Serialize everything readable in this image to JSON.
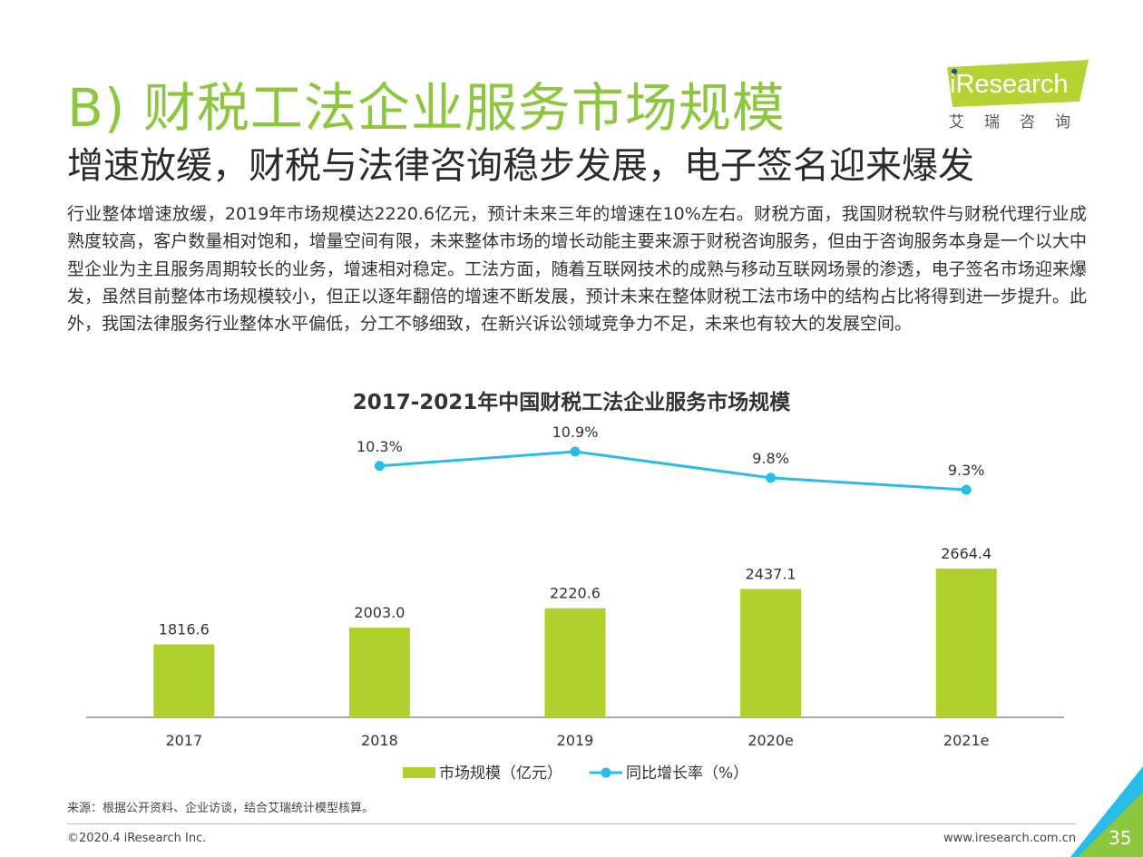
{
  "page": {
    "title": "B) 财税工法企业服务市场规模",
    "subtitle": "增速放缓，财税与法律咨询稳步发展，电子签名迎来爆发",
    "body": "行业整体增速放缓，2019年市场规模达2220.6亿元，预计未来三年的增速在10%左右。财税方面，我国财税软件与财税代理行业成熟度较高，客户数量相对饱和，增量空间有限，未来整体市场的增长动能主要来源于财税咨询服务，但由于咨询服务本身是一个以大中型企业为主且服务周期较长的业务，增速相对稳定。工法方面，随着互联网技术的成熟与移动互联网场景的渗透，电子签名市场迎来爆发，虽然目前整体市场规模较小，但正以逐年翻倍的增速不断发展，预计未来在整体财税工法市场中的结构占比将得到进一步提升。此外，我国法律服务行业整体水平偏低，分工不够细致，在新兴诉讼领域竞争力不足，未来也有较大的发展空间。",
    "source": "来源：根据公开资料、企业访谈，结合艾瑞统计模型核算。",
    "copyright": "©2020.4 iResearch Inc.",
    "website": "www.iresearch.com.cn",
    "page_number": "35"
  },
  "logo": {
    "brand": "iResearch",
    "sub_chars": [
      "艾",
      "瑞",
      "咨",
      "询"
    ]
  },
  "colors": {
    "accent_green": "#8dc63f",
    "bar_green": "#aed12e",
    "line_blue": "#27bde8"
  },
  "chart_data": {
    "type": "bar",
    "title": "2017-2021年中国财税工法企业服务市场规模",
    "categories": [
      "2017",
      "2018",
      "2019",
      "2020e",
      "2021e"
    ],
    "series": [
      {
        "name": "市场规模（亿元）",
        "type": "bar",
        "values": [
          1816.6,
          2003.0,
          2220.6,
          2437.1,
          2664.4
        ],
        "labels": [
          "1816.6",
          "2003.0",
          "2220.6",
          "2437.1",
          "2664.4"
        ]
      },
      {
        "name": "同比增长率（%）",
        "type": "line",
        "values": [
          null,
          10.3,
          10.9,
          9.8,
          9.3
        ],
        "labels": [
          "",
          "10.3%",
          "10.9%",
          "9.8%",
          "9.3%"
        ]
      }
    ],
    "legend_position": "bottom",
    "grid": false
  }
}
